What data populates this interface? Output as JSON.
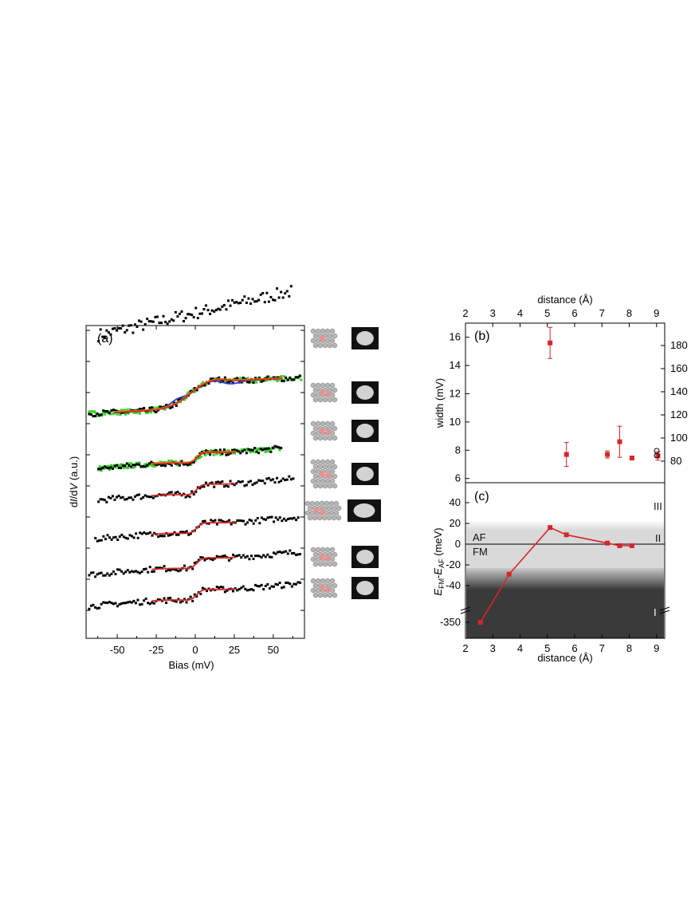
{
  "chart_data": [
    {
      "panel_label": "(a)",
      "type": "line",
      "xlabel": "Bias (mV)",
      "ylabel_parts": [
        "d",
        "I",
        "/d",
        "V",
        " (a.u.)"
      ],
      "x_ticks": [
        "-50",
        "-25",
        "0",
        "25",
        "50"
      ],
      "xlim": [
        -70,
        70
      ],
      "series_info": [
        {
          "offset": 8.0,
          "start": -62,
          "end": 62,
          "model": "linear",
          "fit": null
        },
        {
          "offset": 5.9,
          "start": -68,
          "end": 68,
          "model": "kondo_step",
          "fit": [
            "#d62728",
            "#e08a00",
            "#1f3fd6"
          ],
          "green": true
        },
        {
          "offset": 4.5,
          "start": -62,
          "end": 55,
          "model": "fano",
          "fit": [
            "#d62728",
            "#e08a00"
          ],
          "green": true
        },
        {
          "offset": 3.6,
          "start": -62,
          "end": 64,
          "model": "fano",
          "fit": [
            "#d62728"
          ]
        },
        {
          "offset": 2.5,
          "start": -64,
          "end": 66,
          "model": "fano",
          "fit": [
            "#d62728"
          ]
        },
        {
          "offset": 1.5,
          "start": -68,
          "end": 68,
          "model": "fano",
          "fit": [
            "#d62728"
          ]
        },
        {
          "offset": 0.6,
          "start": -68,
          "end": 68,
          "model": "fano",
          "fit": [
            "#d62728"
          ]
        }
      ]
    },
    {
      "panel_label": "(b)",
      "type": "scatter",
      "ylabel": "width (mV)",
      "top_xlabel": "distance (Å)",
      "x_ticks": [
        "2",
        "3",
        "4",
        "5",
        "6",
        "7",
        "8",
        "9"
      ],
      "y_ticks": [
        "6",
        "8",
        "10",
        "12",
        "14",
        "16"
      ],
      "right_ticks": [
        "80",
        "100",
        "120",
        "140",
        "160",
        "180"
      ],
      "xlim": [
        2,
        9.3
      ],
      "ylim": [
        5.7,
        17
      ],
      "points": [
        {
          "x": 5.1,
          "y": 15.6,
          "err": 1.1
        },
        {
          "x": 5.7,
          "y": 7.7,
          "err": 0.85
        },
        {
          "x": 7.2,
          "y": 7.7,
          "err": 0.25
        },
        {
          "x": 7.65,
          "y": 8.6,
          "err": 1.1
        },
        {
          "x": 8.1,
          "y": 7.45,
          "err": 0.12
        },
        {
          "x": 9.05,
          "y": 7.6,
          "err": 0.3
        }
      ]
    },
    {
      "panel_label": "(c)",
      "type": "line",
      "xlabel": "distance (Å)",
      "ylabel": "E_FM - E_AF (meV)",
      "x_ticks": [
        "2",
        "3",
        "4",
        "5",
        "6",
        "7",
        "8",
        "9"
      ],
      "y_ticks": [
        "40",
        "20",
        "0",
        "-20",
        "-40",
        "-350"
      ],
      "region_labels": [
        "III",
        "II",
        "I"
      ],
      "line_labels": [
        "AF",
        "FM"
      ],
      "points": [
        {
          "x": 2.55,
          "y": -350
        },
        {
          "x": 3.6,
          "y": -29
        },
        {
          "x": 5.1,
          "y": 16
        },
        {
          "x": 5.7,
          "y": 9
        },
        {
          "x": 7.2,
          "y": 1
        },
        {
          "x": 7.65,
          "y": -1.5
        },
        {
          "x": 8.1,
          "y": -1.5
        }
      ]
    }
  ],
  "colors": {
    "data": "#000000",
    "fit": "#d62728",
    "green": "#35d32a",
    "blue": "#1f3fd6",
    "orange": "#e08a00",
    "dark": "#3a3a3a",
    "light": "#d9d9d9"
  }
}
